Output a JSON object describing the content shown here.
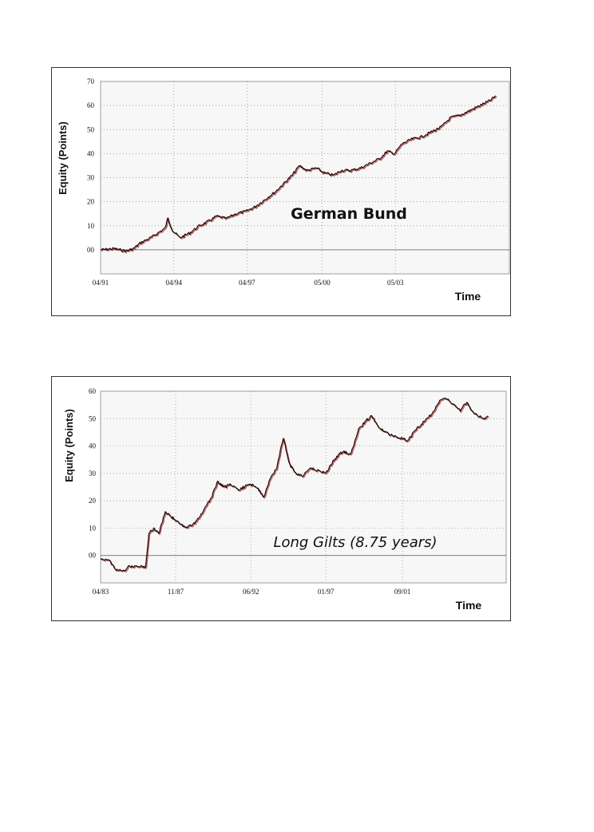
{
  "chart_data": [
    {
      "type": "line",
      "title": "German Bund",
      "xlabel": "Time",
      "ylabel": "Equity (Points)",
      "ylim": [
        -10,
        70
      ],
      "yticks": [
        0,
        10,
        20,
        30,
        40,
        50,
        60,
        70
      ],
      "ytick_labels": [
        "00",
        "10",
        "20",
        "30",
        "40",
        "50",
        "60",
        "70"
      ],
      "xlim": [
        1991.25,
        2008.0
      ],
      "xtick_values": [
        1991.25,
        1994.25,
        1997.25,
        2000.33,
        2003.33
      ],
      "xtick_labels": [
        "04/91",
        "04/94",
        "04/97",
        "05/00",
        "05/03"
      ],
      "grid": true,
      "title_style": "bold",
      "line_colors": {
        "main": "#111111",
        "shadow": "#cc2a2a"
      },
      "series": [
        {
          "name": "Equity",
          "x": [
            1991.25,
            1991.8,
            1992.3,
            1992.6,
            1992.9,
            1993.3,
            1993.6,
            1993.9,
            1994.0,
            1994.2,
            1994.5,
            1994.9,
            1995.3,
            1995.7,
            1996.0,
            1996.4,
            1996.8,
            1997.2,
            1997.6,
            1998.0,
            1998.4,
            1998.8,
            1999.1,
            1999.4,
            1999.7,
            2000.1,
            2000.4,
            2000.8,
            2001.1,
            2001.5,
            2001.9,
            2002.3,
            2002.7,
            2003.0,
            2003.3,
            2003.6,
            2004.0,
            2004.4,
            2004.8,
            2005.2,
            2005.6,
            2006.0,
            2006.4,
            2006.8,
            2007.2,
            2007.45
          ],
          "values": [
            0,
            0.5,
            -0.5,
            0.5,
            3,
            5,
            7,
            9,
            13,
            8,
            5,
            7,
            10,
            12,
            14,
            13,
            15,
            16,
            18,
            21,
            24,
            28,
            31,
            35,
            33,
            34,
            32,
            31,
            33,
            33,
            34,
            36,
            38,
            41,
            40,
            44,
            46,
            47,
            49,
            51,
            55,
            56,
            58,
            60,
            62,
            64
          ]
        }
      ]
    },
    {
      "type": "line",
      "title": "Long Gilts (8.75 years)",
      "xlabel": "Time",
      "ylabel": "Equity (Points)",
      "ylim": [
        -10,
        60
      ],
      "yticks": [
        0,
        10,
        20,
        30,
        40,
        50,
        60
      ],
      "ytick_labels": [
        "00",
        "10",
        "20",
        "30",
        "40",
        "50",
        "60"
      ],
      "xlim": [
        1983.25,
        2008.0
      ],
      "xtick_values": [
        1983.25,
        1987.83,
        1992.42,
        1997.0,
        2001.67
      ],
      "xtick_labels": [
        "04/83",
        "11/87",
        "06/92",
        "01/97",
        "09/01"
      ],
      "grid": true,
      "title_style": "italic",
      "line_colors": {
        "main": "#111111",
        "shadow": "#cc2a2a"
      },
      "series": [
        {
          "name": "Equity",
          "x": [
            1983.25,
            1983.8,
            1984.2,
            1984.6,
            1985.0,
            1985.5,
            1986.0,
            1986.2,
            1986.5,
            1986.8,
            1987.2,
            1987.6,
            1988.0,
            1988.5,
            1989.0,
            1989.5,
            1990.0,
            1990.4,
            1990.8,
            1991.2,
            1991.6,
            1992.0,
            1992.4,
            1992.8,
            1993.2,
            1993.6,
            1994.0,
            1994.4,
            1994.8,
            1995.2,
            1995.6,
            1996.0,
            1996.5,
            1997.0,
            1997.5,
            1998.0,
            1998.5,
            1999.0,
            1999.4,
            1999.8,
            2000.2,
            2000.6,
            2001.0,
            2001.5,
            2002.0,
            2002.5,
            2003.0,
            2003.5,
            2004.0,
            2004.4,
            2004.8,
            2005.2,
            2005.6,
            2006.0,
            2006.3,
            2006.6,
            2006.9
          ],
          "values": [
            -1,
            -2,
            -5,
            -6,
            -4,
            -4,
            -4,
            8,
            10,
            8,
            16,
            14,
            12,
            10,
            12,
            16,
            21,
            27,
            25,
            26,
            24,
            25,
            26,
            25,
            21,
            28,
            32,
            43,
            33,
            30,
            29,
            32,
            31,
            30,
            35,
            38,
            37,
            46,
            49,
            51,
            47,
            45,
            44,
            43,
            42,
            46,
            49,
            52,
            57,
            57,
            55,
            53,
            56,
            52,
            51,
            50,
            51
          ]
        }
      ]
    }
  ]
}
